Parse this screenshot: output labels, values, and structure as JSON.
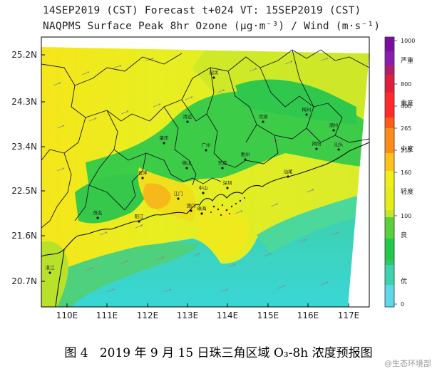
{
  "header": {
    "line1": "14SEP2019 (CST) Forecast t+024 VT: 15SEP2019 (CST)",
    "line2": "NAQPMS Surface Peak 8hr Ozone (μg·m⁻³) / Wind (m·s⁻¹)"
  },
  "map": {
    "region": "Pearl River Delta, Guangdong",
    "lat_labels": [
      "25.2N",
      "24.3N",
      "23.4N",
      "22.5N",
      "21.6N",
      "20.7N"
    ],
    "lon_labels": [
      "110E",
      "111E",
      "112E",
      "113E",
      "114E",
      "115E",
      "116E",
      "117E"
    ],
    "cities": [
      {
        "name": "韶关"
      },
      {
        "name": "清远"
      },
      {
        "name": "河源"
      },
      {
        "name": "梅州"
      },
      {
        "name": "潮州"
      },
      {
        "name": "汕头"
      },
      {
        "name": "揭阳"
      },
      {
        "name": "肇庆"
      },
      {
        "name": "广州"
      },
      {
        "name": "惠州"
      },
      {
        "name": "东莞"
      },
      {
        "name": "佛山"
      },
      {
        "name": "云浮"
      },
      {
        "name": "深圳"
      },
      {
        "name": "汕尾"
      },
      {
        "name": "江门"
      },
      {
        "name": "中山"
      },
      {
        "name": "珠海"
      },
      {
        "name": "澳门"
      },
      {
        "name": "阳江"
      },
      {
        "name": "茂名"
      },
      {
        "name": "湛江"
      }
    ]
  },
  "legend": {
    "ticks": [
      "1000",
      "800",
      "400",
      "265",
      "215",
      "160",
      "100",
      "0"
    ],
    "levels": [
      "严重",
      "重度",
      "中度",
      "轻度",
      "良",
      "优"
    ],
    "colors": {
      "severe": "#7a0ea0",
      "heavy": "#ff2a2a",
      "moderate": "#ff8c1a",
      "light": "#f2ee1a",
      "good": "#22c84a",
      "excellent": "#5ed8e8"
    }
  },
  "caption": {
    "fig": "图 4",
    "text": "2019 年 9 月 15 日珠三角区域 O₃-8h 浓度预报图"
  },
  "watermark": "@生态环境部"
}
